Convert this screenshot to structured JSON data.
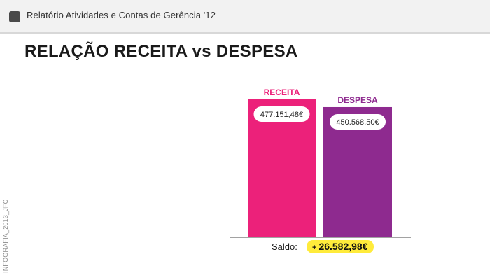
{
  "header": {
    "title": "Relatório Atividades e Contas de Gerência '12"
  },
  "page_title": "RELAÇÃO RECEITA vs DESPESA",
  "side_label": "INFOGRAFIA_2013_JFC",
  "colors": {
    "receita": "#ec217a",
    "despesa": "#8e2a8f",
    "saldo_highlight": "#ffeb3b"
  },
  "chart_data": {
    "type": "bar",
    "title": "",
    "categories": [
      "RECEITA",
      "DESPESA"
    ],
    "values": [
      477151.48,
      450568.5
    ],
    "value_labels": [
      "477.151,48€",
      "450.568,50€"
    ],
    "ylim": [
      0,
      477151.48
    ],
    "grid": false,
    "legend": "none"
  },
  "saldo": {
    "label": "Saldo:",
    "sign": "+",
    "value": "26.582,98€"
  }
}
